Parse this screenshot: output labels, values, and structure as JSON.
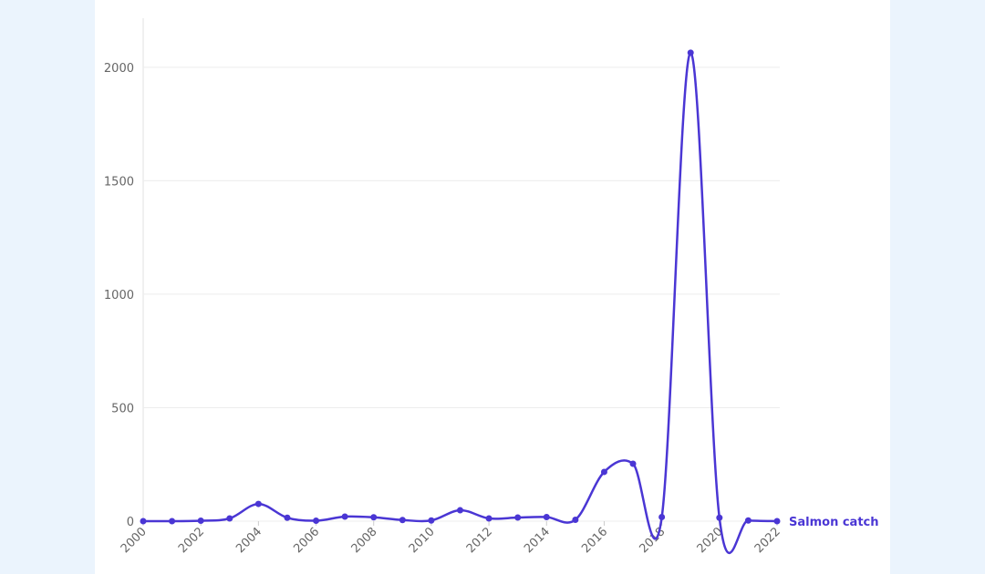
{
  "chart_data": {
    "type": "line",
    "x": [
      2000,
      2001,
      2002,
      2003,
      2004,
      2005,
      2006,
      2007,
      2008,
      2009,
      2010,
      2011,
      2012,
      2013,
      2014,
      2015,
      2016,
      2017,
      2018,
      2019,
      2020,
      2021,
      2022
    ],
    "series": [
      {
        "name": "Salmon catch",
        "color": "#4a36d4",
        "values": [
          0,
          0,
          2,
          12,
          76,
          15,
          2,
          20,
          17,
          5,
          3,
          48,
          12,
          16,
          18,
          6,
          217,
          253,
          18,
          2064,
          15,
          3,
          0
        ]
      }
    ],
    "xlim": [
      2000,
      2022
    ],
    "xticks": [
      2000,
      2002,
      2004,
      2006,
      2008,
      2010,
      2012,
      2014,
      2016,
      2018,
      2020,
      2022
    ],
    "ylim": [
      0,
      2200
    ],
    "yticks": [
      0,
      500,
      1000,
      1500,
      2000
    ],
    "grid": true
  }
}
